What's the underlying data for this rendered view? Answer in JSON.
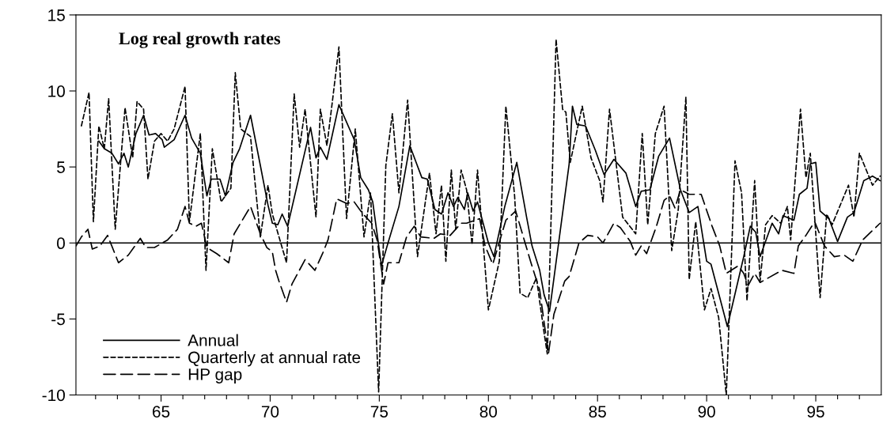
{
  "chart_data": {
    "type": "line",
    "title": "Log real growth rates",
    "xlim": [
      61.1,
      98
    ],
    "ylim": [
      -10,
      15
    ],
    "xticks": [
      {
        "value": 62,
        "label": null
      },
      {
        "value": 63,
        "label": null
      },
      {
        "value": 64,
        "label": null
      },
      65,
      {
        "value": 66,
        "label": null
      },
      {
        "value": 67,
        "label": null
      },
      {
        "value": 68,
        "label": null
      },
      {
        "value": 69,
        "label": null
      },
      70,
      {
        "value": 71,
        "label": null
      },
      {
        "value": 72,
        "label": null
      },
      {
        "value": 73,
        "label": null
      },
      {
        "value": 74,
        "label": null
      },
      75,
      {
        "value": 76,
        "label": null
      },
      {
        "value": 77,
        "label": null
      },
      {
        "value": 78,
        "label": null
      },
      {
        "value": 79,
        "label": null
      },
      80,
      {
        "value": 81,
        "label": null
      },
      {
        "value": 82,
        "label": null
      },
      {
        "value": 83,
        "label": null
      },
      {
        "value": 84,
        "label": null
      },
      85,
      {
        "value": 86,
        "label": null
      },
      {
        "value": 87,
        "label": null
      },
      {
        "value": 88,
        "label": null
      },
      {
        "value": 89,
        "label": null
      },
      90,
      {
        "value": 91,
        "label": null
      },
      {
        "value": 92,
        "label": null
      },
      {
        "value": 93,
        "label": null
      },
      {
        "value": 94,
        "label": null
      },
      95,
      {
        "value": 96,
        "label": null
      },
      {
        "value": 97,
        "label": null
      }
    ],
    "yticks": [
      -10,
      -5,
      0,
      5,
      10,
      15
    ],
    "grid": false,
    "legend": "bottom left",
    "ref_lines": [
      {
        "axis": "y",
        "value": 0,
        "color": "#000000",
        "line_style": "solid"
      }
    ],
    "series": [
      {
        "name": "Annual",
        "color": "#000000",
        "line_style": "solid",
        "x": [
          62.15,
          62.4,
          62.75,
          63.05,
          63.3,
          63.5,
          63.85,
          64.2,
          64.45,
          64.75,
          65.05,
          65.15,
          65.6,
          66.1,
          66.4,
          66.8,
          67.1,
          67.3,
          67.7,
          67.95,
          68.3,
          68.6,
          69.1,
          69.55,
          69.9,
          70.1,
          70.35,
          70.55,
          70.8,
          71.85,
          72.1,
          72.3,
          72.6,
          73.15,
          73.85,
          74.15,
          74.5,
          74.7,
          75.1,
          75.4,
          75.9,
          76.4,
          76.95,
          77.2,
          77.55,
          77.85,
          78.15,
          78.4,
          78.6,
          78.9,
          79.05,
          79.3,
          79.5,
          80.0,
          80.25,
          80.75,
          81.3,
          81.75,
          82.0,
          82.35,
          82.55,
          82.8,
          83.7,
          83.85,
          84.05,
          84.45,
          84.9,
          85.3,
          85.75,
          86.3,
          86.75,
          87.0,
          87.4,
          87.8,
          88.3,
          88.8,
          89.2,
          89.6,
          90.0,
          90.2,
          90.95,
          91.7,
          92.0,
          92.25,
          92.45,
          93.0,
          93.3,
          93.5,
          94.0,
          94.25,
          94.6,
          94.75,
          95.0,
          95.2,
          95.6,
          96.0,
          96.45,
          96.75,
          97.2,
          97.6,
          97.95
        ],
        "values": [
          6.7,
          6.2,
          5.9,
          5.2,
          5.9,
          5.0,
          7.2,
          8.4,
          7.1,
          7.2,
          6.8,
          6.3,
          6.8,
          8.4,
          6.9,
          5.9,
          3.1,
          4.2,
          4.2,
          3.1,
          5.3,
          6.2,
          8.4,
          5.1,
          2.5,
          1.3,
          1.2,
          1.9,
          1.1,
          7.6,
          5.6,
          6.3,
          5.5,
          9.1,
          6.8,
          4.3,
          3.5,
          2.7,
          -1.5,
          0.0,
          2.4,
          6.4,
          4.3,
          4.2,
          2.2,
          1.9,
          3.3,
          2.4,
          3.0,
          2.2,
          3.3,
          2.1,
          2.7,
          0.0,
          -0.9,
          2.4,
          5.3,
          1.7,
          -0.2,
          -1.8,
          -3.4,
          -4.5,
          5.2,
          9.0,
          7.8,
          7.7,
          6.1,
          4.5,
          5.5,
          4.6,
          2.4,
          3.4,
          3.5,
          5.7,
          6.9,
          3.5,
          2.0,
          2.4,
          -1.2,
          -1.4,
          -5.5,
          -0.9,
          1.1,
          0.7,
          -0.9,
          1.3,
          0.6,
          1.8,
          1.5,
          3.2,
          3.6,
          5.2,
          5.3,
          2.1,
          1.6,
          0.1,
          1.7,
          2.0,
          4.1,
          4.4,
          4.1
        ]
      },
      {
        "name": "Quarterly at annual rate",
        "color": "#000000",
        "line_style": "dotted",
        "x": [
          61.35,
          61.7,
          61.9,
          62.15,
          62.4,
          62.6,
          62.9,
          63.35,
          63.7,
          63.9,
          64.2,
          64.4,
          64.7,
          65.0,
          65.3,
          65.6,
          66.1,
          66.3,
          66.8,
          67.06,
          67.35,
          67.75,
          68.2,
          68.4,
          68.65,
          69.1,
          69.55,
          69.9,
          70.1,
          70.75,
          71.1,
          71.35,
          71.6,
          72.1,
          72.3,
          72.6,
          72.85,
          73.15,
          73.5,
          73.9,
          74.3,
          74.6,
          74.97,
          75.3,
          75.6,
          75.9,
          76.3,
          76.75,
          77.3,
          77.6,
          77.85,
          78.05,
          78.3,
          78.5,
          78.75,
          79.0,
          79.25,
          79.5,
          80.0,
          80.5,
          80.8,
          81.2,
          81.45,
          81.8,
          82.2,
          82.55,
          82.7,
          83.1,
          83.4,
          83.55,
          83.75,
          84.3,
          84.7,
          85.1,
          85.25,
          85.55,
          86.15,
          86.75,
          87.05,
          87.3,
          87.65,
          88.05,
          88.4,
          88.7,
          89.05,
          89.2,
          89.5,
          89.9,
          90.2,
          90.55,
          90.9,
          91.3,
          91.6,
          91.85,
          92.2,
          92.45,
          92.7,
          93.0,
          93.4,
          93.7,
          93.85,
          94.3,
          94.55,
          94.75,
          95.2,
          95.5,
          95.75,
          96.5,
          96.75,
          97.0,
          97.6,
          97.95
        ],
        "values": [
          7.7,
          9.9,
          1.4,
          7.7,
          6.2,
          9.5,
          0.9,
          8.9,
          5.6,
          9.3,
          8.8,
          4.2,
          6.7,
          7.2,
          6.7,
          7.5,
          10.3,
          1.4,
          7.2,
          -1.8,
          6.2,
          2.7,
          3.6,
          11.2,
          7.5,
          7.0,
          0.4,
          3.8,
          1.9,
          -1.3,
          9.8,
          6.3,
          8.8,
          1.7,
          8.8,
          6.4,
          9.3,
          12.9,
          1.6,
          7.5,
          0.4,
          3.3,
          -9.8,
          5.1,
          8.5,
          3.3,
          9.4,
          -0.9,
          4.6,
          0.6,
          3.8,
          -1.2,
          4.8,
          0.9,
          4.8,
          3.5,
          -0.1,
          4.8,
          -4.4,
          -1.2,
          9.0,
          3.1,
          -3.3,
          -3.6,
          -2.3,
          -5.9,
          -7.3,
          13.4,
          8.8,
          8.6,
          5.3,
          9.0,
          5.6,
          4.1,
          2.7,
          8.8,
          1.7,
          0.6,
          7.2,
          1.2,
          7.2,
          9.0,
          -0.5,
          2.2,
          9.6,
          -2.4,
          1.4,
          -4.4,
          -3.0,
          -4.9,
          -10.0,
          5.4,
          3.3,
          -3.8,
          4.1,
          -2.5,
          1.2,
          1.8,
          1.3,
          2.4,
          0.2,
          8.8,
          4.3,
          5.9,
          -3.6,
          1.9,
          1.2,
          3.8,
          1.7,
          5.9,
          3.8,
          4.4
        ]
      },
      {
        "name": "HP gap",
        "color": "#000000",
        "line_style": "dashed",
        "x": [
          61.1,
          61.35,
          61.65,
          61.85,
          62.2,
          62.55,
          63.05,
          63.5,
          64.05,
          64.3,
          64.7,
          65.3,
          65.75,
          66.1,
          66.3,
          66.6,
          66.85,
          67.1,
          67.55,
          68.1,
          68.35,
          69.1,
          69.55,
          69.85,
          70.1,
          70.25,
          70.4,
          70.75,
          71.0,
          71.6,
          72.05,
          72.4,
          72.65,
          73.05,
          73.5,
          73.85,
          74.2,
          74.65,
          74.9,
          75.2,
          75.4,
          75.9,
          76.25,
          76.6,
          76.9,
          77.5,
          77.8,
          78.25,
          78.75,
          79.0,
          79.6,
          79.85,
          80.2,
          80.8,
          81.25,
          81.6,
          81.95,
          82.35,
          82.75,
          83.0,
          83.5,
          83.7,
          84.15,
          84.55,
          85.0,
          85.25,
          85.75,
          86.05,
          86.5,
          86.75,
          87.0,
          87.25,
          87.7,
          88.05,
          88.3,
          88.55,
          88.8,
          89.2,
          89.75,
          90.25,
          90.6,
          90.9,
          91.45,
          91.7,
          91.9,
          92.2,
          92.45,
          93.45,
          94.0,
          94.2,
          94.55,
          94.95,
          95.4,
          95.85,
          96.3,
          96.7,
          97.15,
          97.95
        ],
        "values": [
          -0.2,
          0.4,
          0.9,
          -0.4,
          -0.2,
          0.5,
          -1.3,
          -0.8,
          0.3,
          -0.3,
          -0.3,
          0.2,
          0.9,
          2.4,
          1.3,
          1.1,
          1.3,
          -0.3,
          -0.7,
          -1.3,
          0.6,
          2.4,
          0.6,
          -0.3,
          -0.6,
          -1.8,
          -2.5,
          -3.9,
          -2.7,
          -1.1,
          -1.8,
          -0.7,
          0.2,
          2.9,
          2.6,
          2.7,
          2.0,
          1.3,
          0.2,
          -2.7,
          -1.3,
          -1.3,
          0.4,
          1.1,
          0.4,
          0.3,
          0.6,
          0.5,
          1.3,
          1.3,
          1.6,
          -0.2,
          -1.4,
          1.5,
          2.1,
          0.4,
          -1.3,
          -3.1,
          -7.3,
          -4.7,
          -2.5,
          -2.2,
          0.0,
          0.5,
          0.4,
          0.0,
          1.3,
          1.0,
          0.1,
          -0.8,
          -0.2,
          -0.7,
          1.1,
          2.8,
          3.1,
          2.3,
          3.5,
          3.2,
          3.2,
          1.1,
          -0.2,
          -2.0,
          -1.5,
          -2.0,
          -2.8,
          -2.0,
          -2.6,
          -1.8,
          -2.0,
          -0.2,
          0.5,
          1.4,
          -0.2,
          -0.9,
          -0.8,
          -1.2,
          0.2,
          1.3
        ]
      }
    ]
  }
}
